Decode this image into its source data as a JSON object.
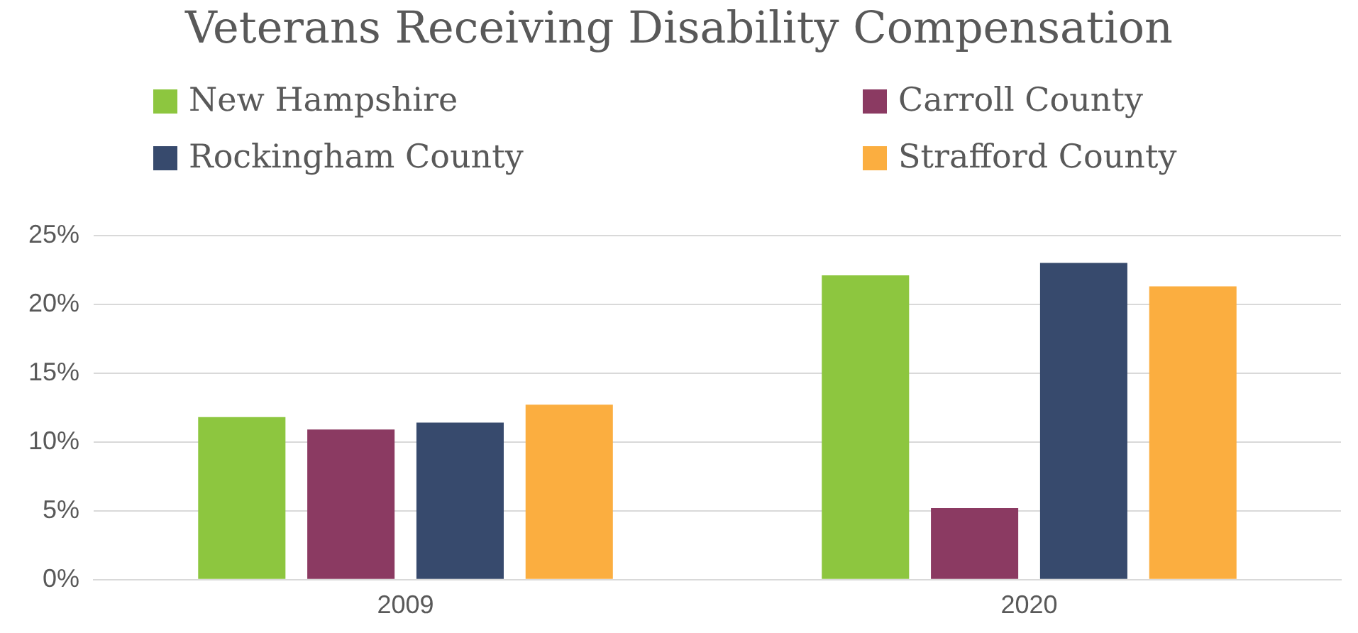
{
  "chart_data": {
    "type": "bar",
    "title": "Veterans Receiving Disability Compensation",
    "categories": [
      "2009",
      "2020"
    ],
    "series": [
      {
        "name": "New Hampshire",
        "color": "#8dc63f",
        "values": [
          11.8,
          22.1
        ]
      },
      {
        "name": "Carroll County",
        "color": "#8b3a62",
        "values": [
          10.9,
          5.2
        ]
      },
      {
        "name": "Rockingham County",
        "color": "#374a6d",
        "values": [
          11.4,
          23.0
        ]
      },
      {
        "name": "Strafford County",
        "color": "#fbae40",
        "values": [
          12.7,
          21.3
        ]
      }
    ],
    "ylim": [
      0,
      25
    ],
    "yticks": [
      {
        "value": 0,
        "label": "0%"
      },
      {
        "value": 5,
        "label": "5%"
      },
      {
        "value": 10,
        "label": "10%"
      },
      {
        "value": 15,
        "label": "15%"
      },
      {
        "value": 20,
        "label": "20%"
      },
      {
        "value": 25,
        "label": "25%"
      }
    ],
    "grid": "y",
    "legend": "top"
  }
}
